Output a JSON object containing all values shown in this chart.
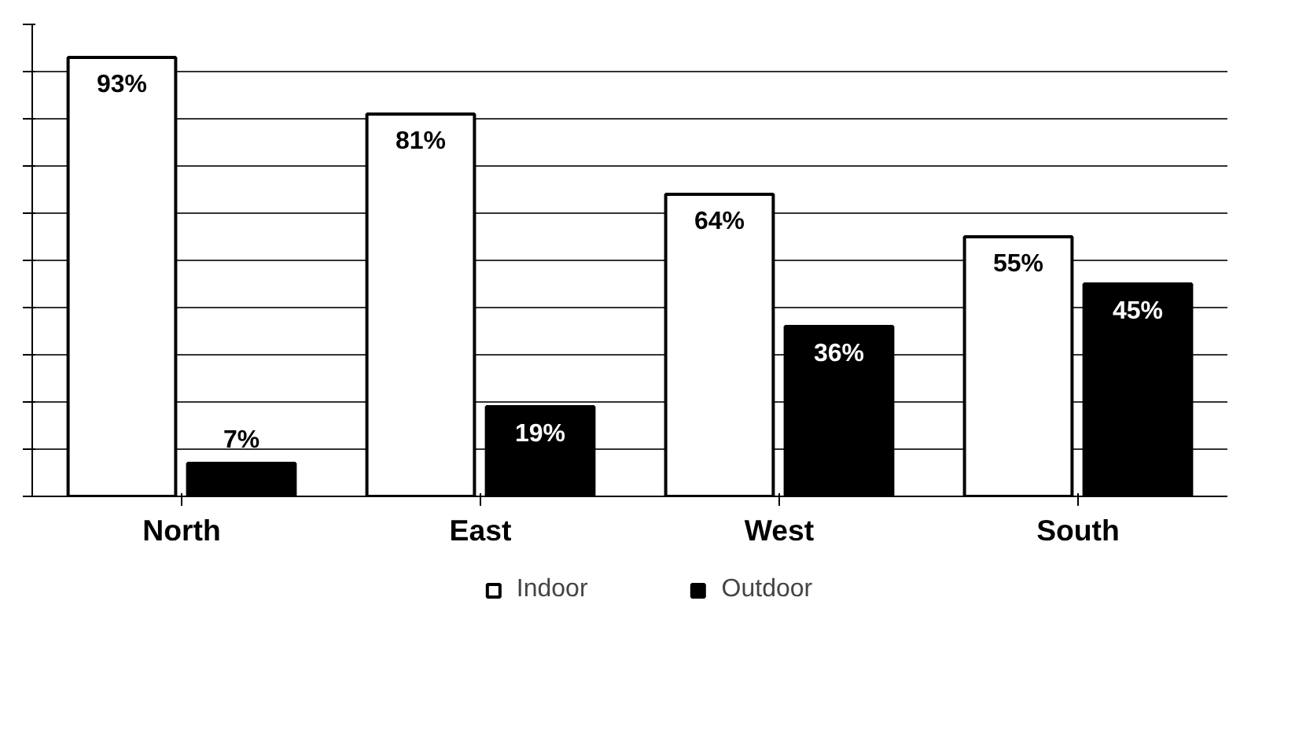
{
  "chart_data": {
    "type": "bar",
    "categories": [
      "North",
      "East",
      "West",
      "South"
    ],
    "series": [
      {
        "name": "Indoor",
        "color": "#ffffff",
        "values": [
          93,
          81,
          64,
          55
        ],
        "value_labels": [
          "93%",
          "81%",
          "64%",
          "55%"
        ]
      },
      {
        "name": "Outdoor",
        "color": "#000000",
        "values": [
          7,
          19,
          36,
          45
        ],
        "value_labels": [
          "7%",
          "19%",
          "36%",
          "45%"
        ]
      }
    ],
    "ylim": [
      0,
      100
    ],
    "yticks": [
      {
        "value": 0,
        "label": null
      },
      {
        "value": 10,
        "label": null
      },
      {
        "value": 20,
        "label": null
      },
      {
        "value": 30,
        "label": null
      },
      {
        "value": 40,
        "label": null
      },
      {
        "value": 50,
        "label": null
      },
      {
        "value": 60,
        "label": null
      },
      {
        "value": 70,
        "label": null
      },
      {
        "value": 80,
        "label": null
      },
      {
        "value": 90,
        "label": null
      },
      {
        "value": 100,
        "label": null
      }
    ],
    "grid": "y",
    "legend": "bottom",
    "tick_labels": "x"
  }
}
